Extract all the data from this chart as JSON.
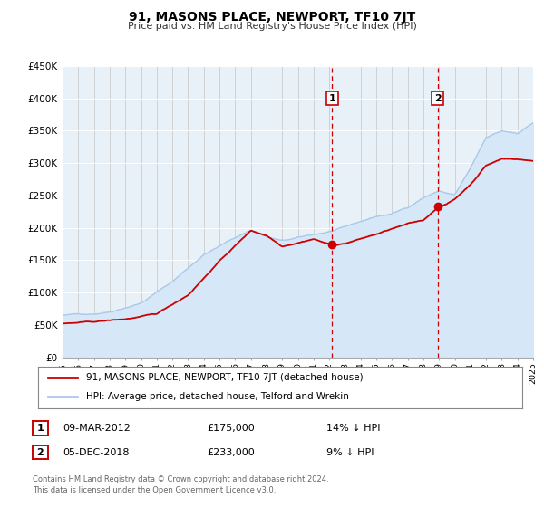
{
  "title": "91, MASONS PLACE, NEWPORT, TF10 7JT",
  "subtitle": "Price paid vs. HM Land Registry's House Price Index (HPI)",
  "legend_line1": "91, MASONS PLACE, NEWPORT, TF10 7JT (detached house)",
  "legend_line2": "HPI: Average price, detached house, Telford and Wrekin",
  "annotation1_date": "09-MAR-2012",
  "annotation1_price": "£175,000",
  "annotation1_pct": "14% ↓ HPI",
  "annotation2_date": "05-DEC-2018",
  "annotation2_price": "£233,000",
  "annotation2_pct": "9% ↓ HPI",
  "footer": "Contains HM Land Registry data © Crown copyright and database right 2024.\nThis data is licensed under the Open Government Licence v3.0.",
  "sale1_year": 2012.19,
  "sale1_value": 175000,
  "sale2_year": 2018.92,
  "sale2_value": 233000,
  "hpi_color": "#aac8e8",
  "hpi_fill_color": "#d6e8f7",
  "price_color": "#cc0000",
  "dot_color": "#cc0000",
  "vline_color": "#cc0000",
  "background_color": "#e8f0f8",
  "grid_color": "#ffffff",
  "vgrid_color": "#cccccc",
  "ylim": [
    0,
    450000
  ],
  "xlim_start": 1995,
  "xlim_end": 2025,
  "yticks": [
    0,
    50000,
    100000,
    150000,
    200000,
    250000,
    300000,
    350000,
    400000,
    450000
  ],
  "ytick_labels": [
    "£0",
    "£50K",
    "£100K",
    "£150K",
    "£200K",
    "£250K",
    "£300K",
    "£350K",
    "£400K",
    "£450K"
  ],
  "xticks": [
    1995,
    1996,
    1997,
    1998,
    1999,
    2000,
    2001,
    2002,
    2003,
    2004,
    2005,
    2006,
    2007,
    2008,
    2009,
    2010,
    2011,
    2012,
    2013,
    2014,
    2015,
    2016,
    2017,
    2018,
    2019,
    2020,
    2021,
    2022,
    2023,
    2024,
    2025
  ]
}
